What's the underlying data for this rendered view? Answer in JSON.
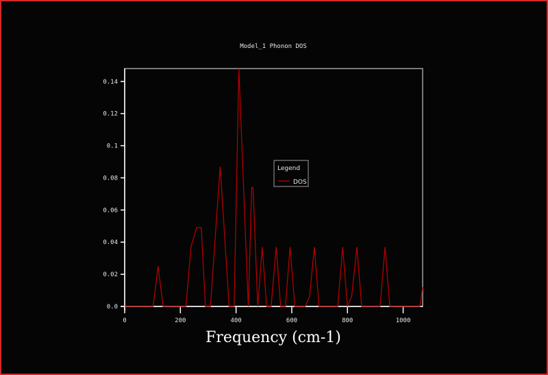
{
  "window": {
    "border_color": "#d42a2a",
    "background": "#050505"
  },
  "chart_data": {
    "type": "line",
    "title": "Model_1 Phonon DOS",
    "xlabel": "Frequency (cm-1)",
    "ylabel": "",
    "xlim": [
      0,
      1070
    ],
    "ylim": [
      0,
      0.148
    ],
    "x_ticks": [
      0,
      200,
      400,
      600,
      800,
      1000
    ],
    "x_tick_labels": [
      "0",
      "200",
      "400",
      "600",
      "800",
      "1000"
    ],
    "y_ticks": [
      0.0,
      0.02,
      0.04,
      0.06,
      0.08,
      0.1,
      0.12,
      0.14
    ],
    "y_tick_labels": [
      "0.0",
      "0.02",
      "0.04",
      "0.06",
      "0.08",
      "0.1",
      "0.12",
      "0.14"
    ],
    "grid": false,
    "legend": {
      "title": "Legend",
      "position": "center-right",
      "entries": [
        "DOS"
      ]
    },
    "series": [
      {
        "name": "DOS",
        "color": "#c00000",
        "x": [
          0,
          102,
          120,
          138,
          220,
          238,
          258,
          275,
          290,
          308,
          343,
          375,
          393,
          410,
          444,
          456,
          461,
          478,
          494,
          510,
          526,
          544,
          560,
          577,
          594,
          611,
          648,
          664,
          681,
          698,
          765,
          783,
          800,
          815,
          834,
          851,
          917,
          935,
          952,
          1060,
          1070
        ],
        "y": [
          0,
          0,
          0.025,
          0,
          0,
          0.037,
          0.049,
          0.049,
          0,
          0,
          0.087,
          0,
          0,
          0.148,
          0,
          0.074,
          0.074,
          0,
          0.037,
          0,
          0,
          0.037,
          0,
          0,
          0.037,
          0,
          0,
          0.006,
          0.037,
          0,
          0,
          0.037,
          0,
          0.006,
          0.037,
          0,
          0,
          0.037,
          0,
          0,
          0.012
        ]
      }
    ]
  }
}
